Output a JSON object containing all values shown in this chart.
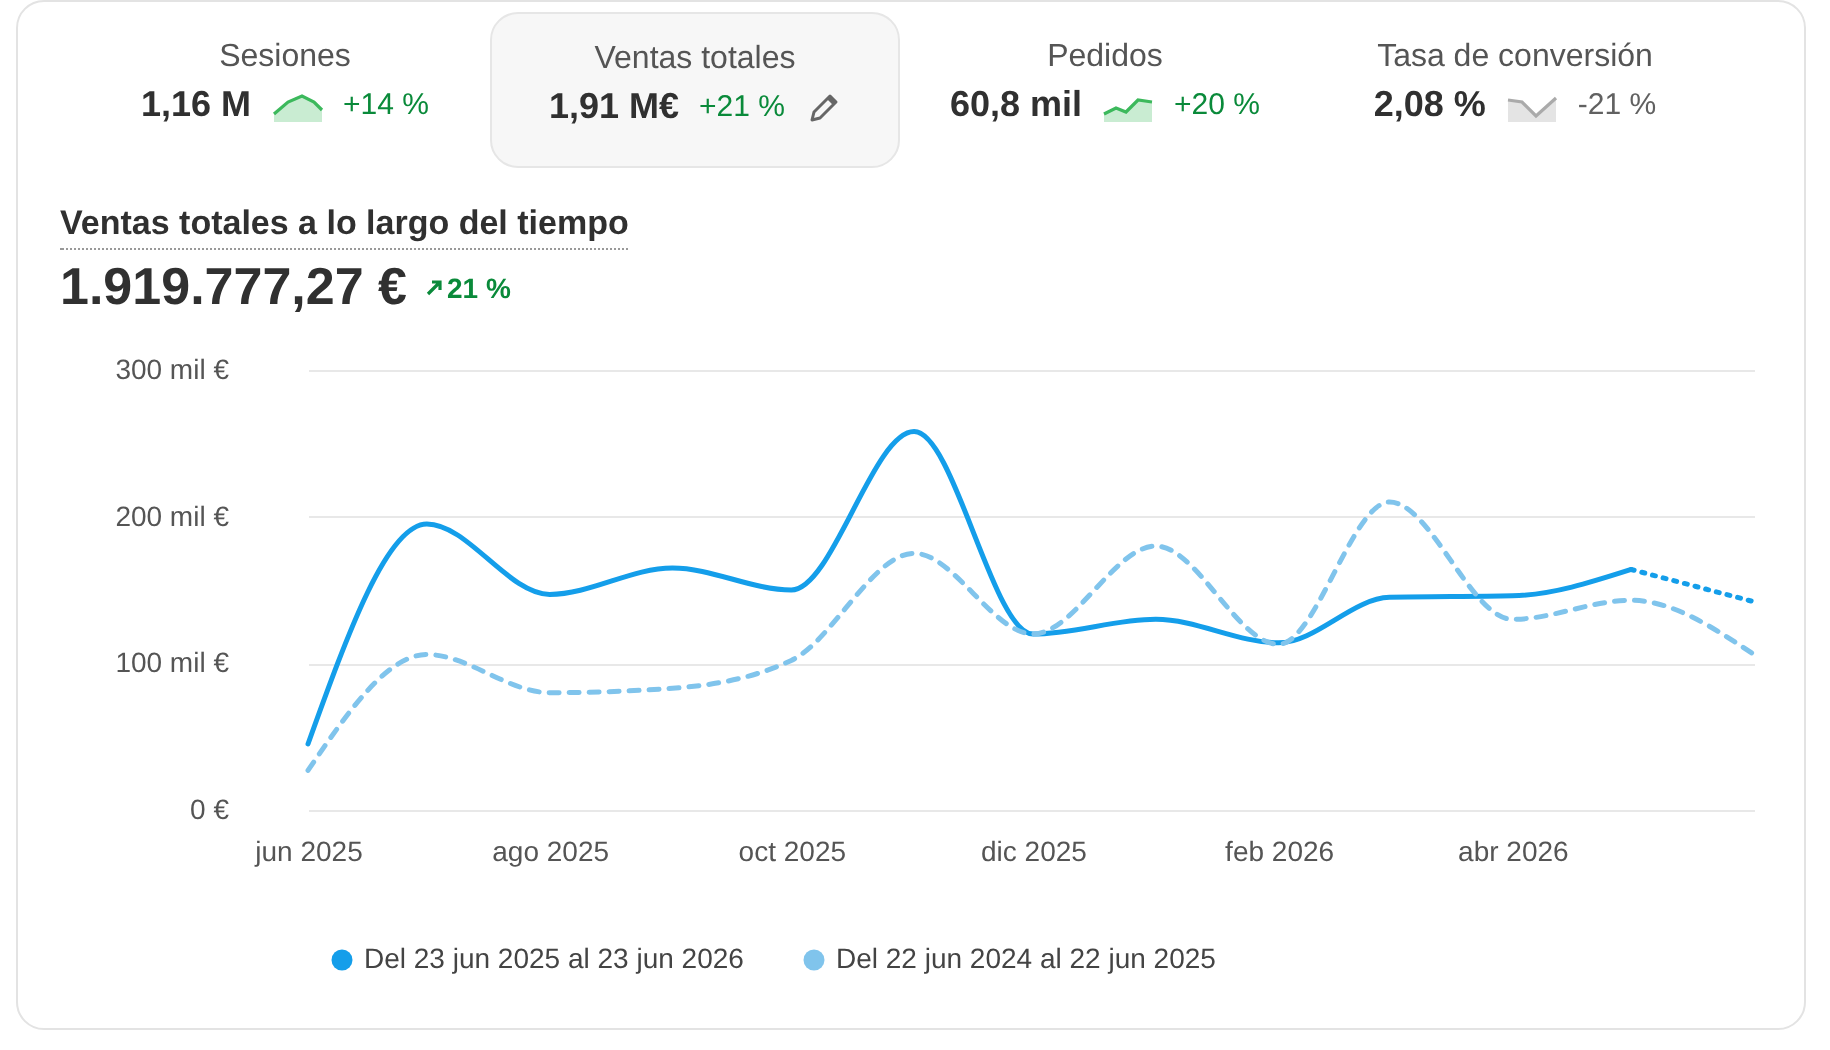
{
  "chart_data": {
    "type": "line",
    "title": "Ventas totales a lo largo del tiempo",
    "subtitle": "1.919.777,27 €",
    "annotations": [
      "Sesiones",
      "1,16 M",
      "+14 %",
      "Ventas totales",
      "1,91 M€",
      "+21 %",
      "Pedidos",
      "60,8 mil",
      "+20 %",
      "Tasa de conversión",
      "2,08 %",
      "-21 %",
      "21 %"
    ],
    "x": [
      "2025-06",
      "2025-07",
      "2025-08",
      "2025-09",
      "2025-10",
      "2025-11",
      "2025-12",
      "2026-01",
      "2026-02",
      "2026-03",
      "2026-04",
      "2026-05",
      "2026-06"
    ],
    "series": [
      {
        "name": "Del 23 jun 2025 al 23 jun 2026",
        "color": "#149eea",
        "line_style": "solid",
        "values": [
          45,
          195,
          147,
          165,
          150,
          258,
          120,
          130,
          114,
          145,
          146,
          164,
          null
        ]
      },
      {
        "name": "Del 22 jun 2024 al 22 jun 2025",
        "color": "#80c4ec",
        "line_style": "dashed",
        "values": [
          27,
          106,
          80,
          83,
          102,
          175,
          120,
          180,
          113,
          210,
          130,
          143,
          106
        ]
      },
      {
        "color": "#149eea",
        "line_style": "dotted",
        "values": [
          null,
          null,
          null,
          null,
          null,
          null,
          null,
          null,
          null,
          null,
          null,
          164,
          142
        ]
      }
    ],
    "xlim": [
      "2025-06",
      "2026-06"
    ],
    "xticks": [
      {
        "value": "2025-06",
        "label": "jun 2025"
      },
      {
        "value": "2025-08",
        "label": "ago 2025"
      },
      {
        "value": "2025-10",
        "label": "oct 2025"
      },
      {
        "value": "2025-12",
        "label": "dic 2025"
      },
      {
        "value": "2026-02",
        "label": "feb 2026"
      },
      {
        "value": "2026-04",
        "label": "abr 2026"
      }
    ],
    "ylim": [
      0,
      300
    ],
    "yticks": [
      {
        "value": 0,
        "label": "0 €"
      },
      {
        "value": 100,
        "label": "100 mil €"
      },
      {
        "value": 200,
        "label": "200 mil €"
      },
      {
        "value": 300,
        "label": "300 mil €"
      }
    ],
    "grid": "y",
    "legend": "bottom",
    "marker": "none"
  }
}
